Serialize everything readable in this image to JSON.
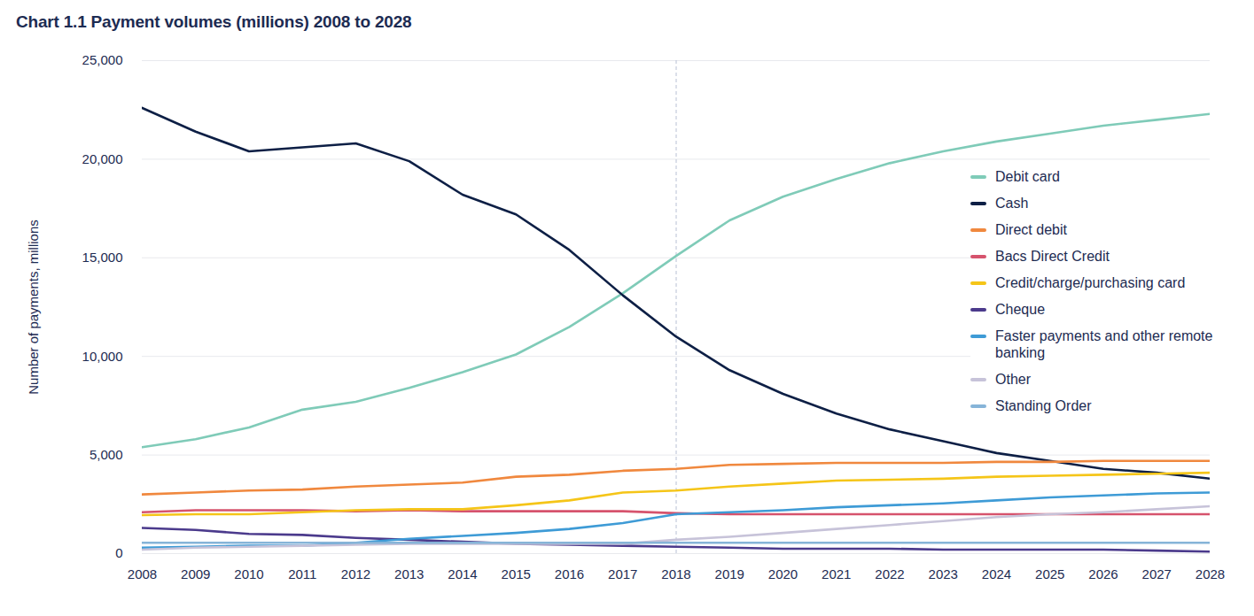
{
  "chart_data": {
    "type": "line",
    "title": "Chart 1.1 Payment volumes (millions) 2008 to 2028",
    "y_label": "Number of payments, millions",
    "x": [
      2008,
      2009,
      2010,
      2011,
      2012,
      2013,
      2014,
      2015,
      2016,
      2017,
      2018,
      2019,
      2020,
      2021,
      2022,
      2023,
      2024,
      2025,
      2026,
      2027,
      2028
    ],
    "xlim": [
      2008,
      2028
    ],
    "xticks": [
      2008,
      2009,
      2010,
      2011,
      2012,
      2013,
      2014,
      2015,
      2016,
      2017,
      2018,
      2019,
      2020,
      2021,
      2022,
      2023,
      2024,
      2025,
      2026,
      2027,
      2028
    ],
    "ylim": [
      0,
      25000
    ],
    "yticks": [
      0,
      {
        "value": 5000,
        "label": "5,000"
      },
      {
        "value": 10000,
        "label": "10,000"
      },
      {
        "value": 15000,
        "label": "15,000"
      },
      {
        "value": 20000,
        "label": "20,000"
      },
      {
        "value": 25000,
        "label": "25,000"
      }
    ],
    "grid": true,
    "legend": "right",
    "vlines": [
      2018
    ],
    "series": [
      {
        "name": "Debit card",
        "color": "#7fcbb8",
        "values": [
          5400,
          5800,
          6400,
          7300,
          7700,
          8400,
          9200,
          10100,
          11500,
          13200,
          15100,
          16900,
          18100,
          19000,
          19800,
          20400,
          20900,
          21300,
          21700,
          22000,
          22300
        ]
      },
      {
        "name": "Cash",
        "color": "#0d1f45",
        "values": [
          22600,
          21400,
          20400,
          20600,
          20800,
          19900,
          18200,
          17200,
          15400,
          13100,
          11000,
          9300,
          8100,
          7100,
          6300,
          5700,
          5100,
          4700,
          4300,
          4100,
          3800
        ]
      },
      {
        "name": "Direct debit",
        "color": "#f0883e",
        "values": [
          3000,
          3100,
          3200,
          3250,
          3400,
          3500,
          3600,
          3900,
          4000,
          4200,
          4300,
          4500,
          4550,
          4600,
          4600,
          4600,
          4650,
          4650,
          4700,
          4700,
          4700
        ]
      },
      {
        "name": "Bacs Direct Credit",
        "color": "#d6536d",
        "values": [
          2100,
          2200,
          2200,
          2200,
          2150,
          2200,
          2150,
          2150,
          2150,
          2150,
          2050,
          2000,
          2000,
          2000,
          2000,
          2000,
          2000,
          2000,
          2000,
          2000,
          2000
        ]
      },
      {
        "name": "Credit/charge/purchasing card",
        "color": "#f5c518",
        "values": [
          1950,
          2000,
          2000,
          2100,
          2200,
          2250,
          2250,
          2450,
          2700,
          3100,
          3200,
          3400,
          3550,
          3700,
          3750,
          3800,
          3900,
          3950,
          4000,
          4050,
          4100
        ]
      },
      {
        "name": "Cheque",
        "color": "#4b3a8c",
        "values": [
          1300,
          1200,
          1000,
          950,
          800,
          700,
          600,
          500,
          450,
          400,
          350,
          300,
          250,
          250,
          250,
          200,
          200,
          200,
          200,
          150,
          100
        ]
      },
      {
        "name": "Faster payments and other remote banking",
        "color": "#3e9bd6",
        "values": [
          300,
          350,
          400,
          400,
          550,
          750,
          900,
          1050,
          1250,
          1550,
          2000,
          2100,
          2200,
          2350,
          2450,
          2550,
          2700,
          2850,
          2950,
          3050,
          3100
        ]
      },
      {
        "name": "Other",
        "color": "#c7c3d9",
        "values": [
          200,
          300,
          350,
          400,
          450,
          500,
          500,
          500,
          500,
          500,
          700,
          850,
          1050,
          1250,
          1450,
          1650,
          1850,
          2000,
          2100,
          2250,
          2400
        ]
      },
      {
        "name": "Standing Order",
        "color": "#86b4d8",
        "values": [
          550,
          550,
          550,
          550,
          550,
          550,
          550,
          550,
          550,
          550,
          550,
          550,
          550,
          550,
          550,
          550,
          550,
          550,
          550,
          550,
          550
        ]
      }
    ]
  }
}
